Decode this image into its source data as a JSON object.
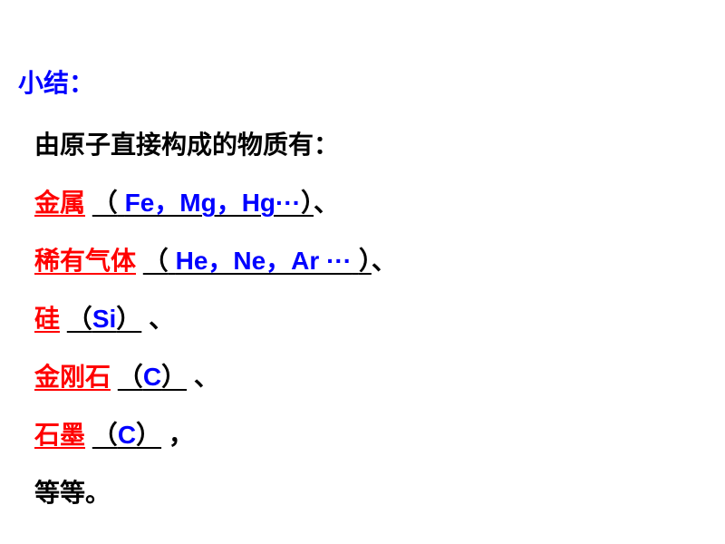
{
  "colors": {
    "blue": "#0000ff",
    "red": "#ff0000",
    "black": "#000000"
  },
  "title": "小结：",
  "intro": "由原子直接构成的物质有：",
  "items": [
    {
      "name": "金属",
      "name_underline": true,
      "paren_open": "（",
      "paren_text_pre": "  ",
      "examples": "Fe，Mg，Hg···",
      "paren_text_post": "",
      "paren_close": "）",
      "separator": "、"
    },
    {
      "name": "稀有气体",
      "name_underline": true,
      "paren_open": "（",
      "paren_text_pre": " ",
      "examples": "He，Ne，Ar ···",
      "paren_text_post": " ",
      "paren_close": "）",
      "separator": "、"
    },
    {
      "name": "硅",
      "name_underline": true,
      "paren_open": "（",
      "paren_text_pre": "",
      "examples": "Si",
      "paren_text_post": "",
      "paren_close": "）",
      "separator": " 、"
    },
    {
      "name": "金刚石",
      "name_underline": true,
      "paren_open": "（",
      "paren_text_pre": "",
      "examples": "C",
      "paren_text_post": "",
      "paren_close": "）",
      "separator": " 、"
    },
    {
      "name": "石墨",
      "name_underline": true,
      "paren_open": "（",
      "paren_text_pre": "",
      "examples": "C",
      "paren_text_post": "",
      "paren_close": "）",
      "separator": " ，"
    }
  ],
  "footer": "等等。"
}
